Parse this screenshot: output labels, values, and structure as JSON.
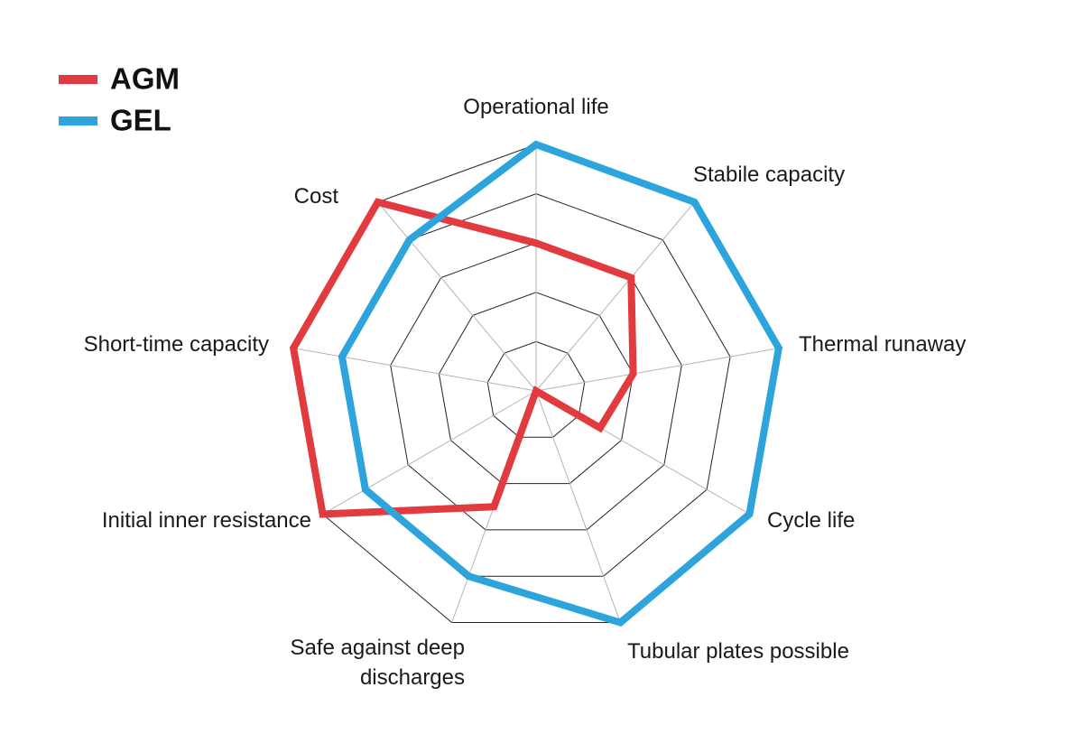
{
  "chart_data": {
    "type": "radar",
    "categories": [
      "Operational life",
      "Stabile capacity",
      "Thermal runaway",
      "Cycle life",
      "Tubular plates possible",
      "Safe against deep discharges",
      "Initial inner resistance",
      "Short-time capacity",
      "Cost"
    ],
    "series": [
      {
        "name": "AGM",
        "color": "#e23b3f",
        "values": [
          3,
          3,
          2,
          1.5,
          0,
          2.5,
          5,
          5,
          5
        ]
      },
      {
        "name": "GEL",
        "color": "#2ea4dc",
        "values": [
          5,
          5,
          5,
          5,
          5,
          4,
          4,
          4,
          4
        ]
      }
    ],
    "rlim": [
      0,
      5
    ],
    "rticks": [
      1,
      2,
      3,
      4,
      5
    ],
    "grid": true,
    "legend": "upper left"
  }
}
